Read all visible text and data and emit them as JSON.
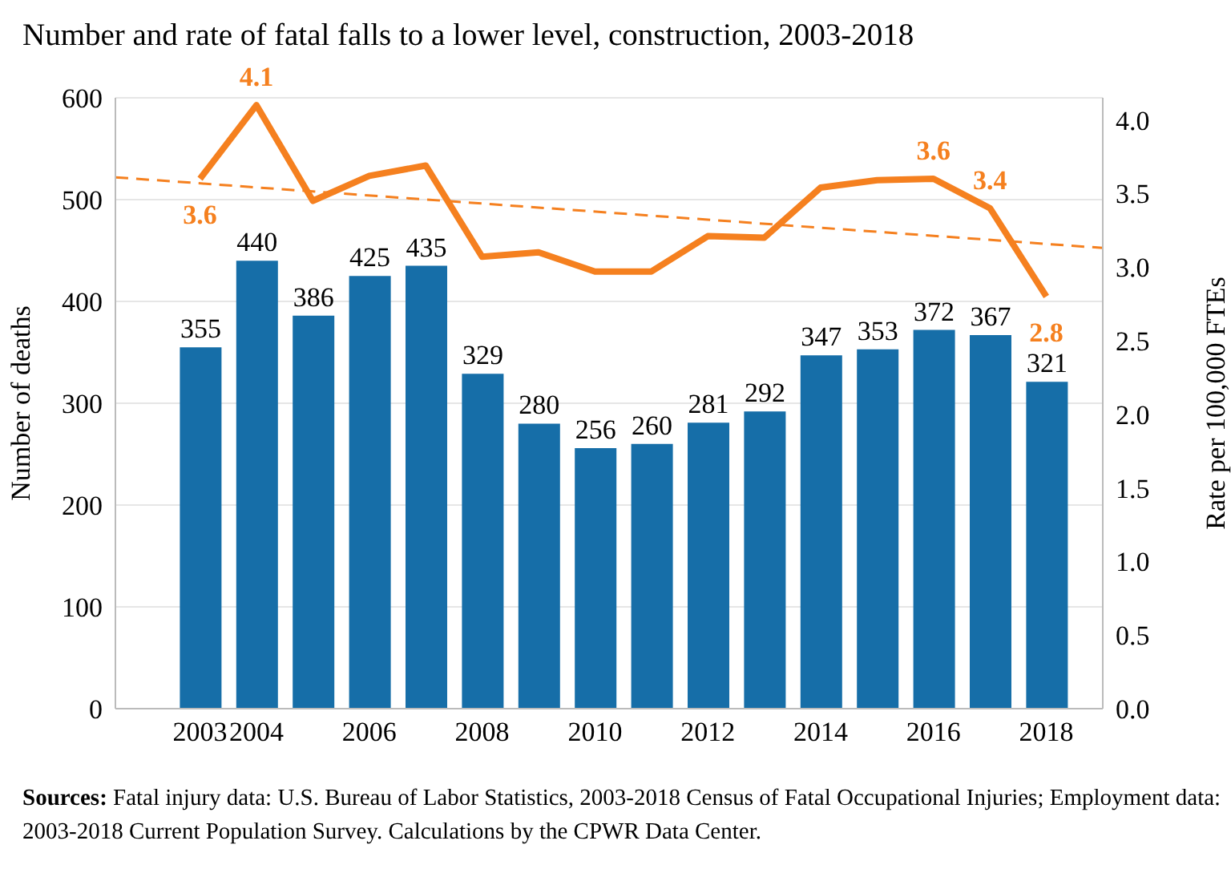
{
  "chart_data": {
    "type": "bar",
    "title": "Number and rate of fatal falls to a lower level, construction, 2003-2018",
    "x": [
      2003,
      2004,
      2005,
      2006,
      2007,
      2008,
      2009,
      2010,
      2011,
      2012,
      2013,
      2014,
      2015,
      2016,
      2017,
      2018
    ],
    "xlim": [
      2001.5,
      2019
    ],
    "xticks": [
      2003,
      2004,
      2006,
      2008,
      2010,
      2012,
      2014,
      2016,
      2018
    ],
    "ylabel": "Number of deaths",
    "y2label": "Rate per 100,000 FTEs",
    "ylim": [
      0,
      600
    ],
    "yticks": [
      0,
      100,
      200,
      300,
      400,
      500,
      600
    ],
    "y2lim": [
      0,
      4.15
    ],
    "y2ticks": [
      {
        "value": 0,
        "label": "0.0"
      },
      0.5,
      {
        "value": 1,
        "label": "1.0"
      },
      1.5,
      {
        "value": 2,
        "label": "2.0"
      },
      2.5,
      {
        "value": 3,
        "label": "3.0"
      },
      3.5,
      {
        "value": 4,
        "label": "4.0"
      }
    ],
    "grid": "y",
    "legend": false,
    "marker": "none",
    "series": [
      {
        "color": "#166ea8",
        "values": [
          355,
          440,
          386,
          425,
          435,
          329,
          280,
          256,
          260,
          281,
          292,
          347,
          353,
          372,
          367,
          321
        ],
        "data_labels": true
      },
      {
        "type": "line",
        "axis": "y2",
        "color": "#f5801f",
        "line_style": "solid",
        "values": [
          3.6,
          4.1,
          3.45,
          3.62,
          3.69,
          3.07,
          3.1,
          2.97,
          2.97,
          3.21,
          3.2,
          3.54,
          3.59,
          3.6,
          3.4,
          2.8
        ],
        "value_labels": [
          "3.6",
          "4.1",
          null,
          null,
          null,
          null,
          null,
          null,
          null,
          null,
          null,
          null,
          null,
          "3.6",
          "3.4",
          "2.8"
        ]
      },
      {
        "type": "line",
        "axis": "y2",
        "color": "#f5801f",
        "line_style": "dashed",
        "x": [
          2001.5,
          2019
        ],
        "values": [
          3.61,
          3.13
        ]
      }
    ],
    "annotations": [
      "Sources: Fatal injury data: U.S. Bureau of Labor Statistics, 2003-2018 Census of Fatal Occupational Injuries; Employment data: 2003-2018 Current Population Survey. Calculations by the CPWR Data Center."
    ]
  }
}
